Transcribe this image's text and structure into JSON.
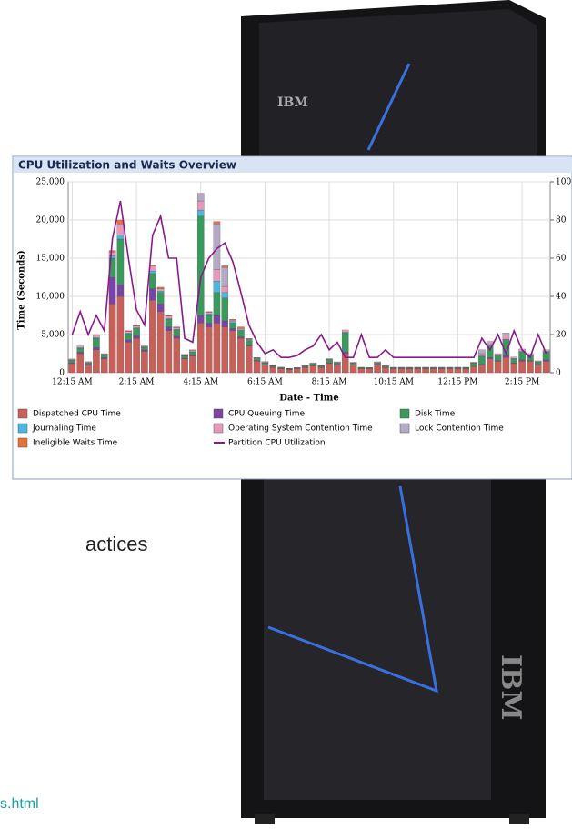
{
  "page_text": {
    "fragment_1": "actices",
    "fragment_2": "s.html",
    "logo": "IBM"
  },
  "chart_data": {
    "type": "bar",
    "stacked": true,
    "title": "CPU Utilization and Waits Overview",
    "x_label": "Date - Time",
    "y_label": "Time (Seconds)",
    "grid": true,
    "categories": [
      "12:15 AM",
      null,
      null,
      null,
      null,
      null,
      null,
      null,
      "2:15 AM",
      null,
      null,
      null,
      null,
      null,
      null,
      null,
      "4:15 AM",
      null,
      null,
      null,
      null,
      null,
      null,
      null,
      "6:15 AM",
      null,
      null,
      null,
      null,
      null,
      null,
      null,
      "8:15 AM",
      null,
      null,
      null,
      null,
      null,
      null,
      null,
      "10:15 AM",
      null,
      null,
      null,
      null,
      null,
      null,
      null,
      "12:15 PM",
      null,
      null,
      null,
      null,
      null,
      null,
      null,
      "2:15 PM",
      null,
      null,
      null
    ],
    "ylim": [
      0,
      25000
    ],
    "yticks": [
      0,
      {
        "value": 5000,
        "label": "5,000"
      },
      {
        "value": 10000,
        "label": "10,000"
      },
      {
        "value": 15000,
        "label": "15,000"
      },
      {
        "value": 20000,
        "label": "20,000"
      },
      {
        "value": 25000,
        "label": "25,000"
      }
    ],
    "y2lim": [
      0,
      100
    ],
    "y2ticks": [
      0,
      20,
      40,
      60,
      80,
      100
    ],
    "series": [
      {
        "name": "Dispatched CPU Time",
        "color": "#c8605a",
        "values": [
          1200,
          2500,
          1000,
          3000,
          1800,
          9000,
          10000,
          4000,
          4500,
          2800,
          9500,
          8000,
          5500,
          4500,
          1800,
          2200,
          6500,
          6000,
          6500,
          6000,
          5500,
          4500,
          3500,
          1500,
          1000,
          700,
          500,
          400,
          500,
          700,
          900,
          700,
          1200,
          1000,
          2500,
          1000,
          500,
          500,
          1000,
          700,
          500,
          500,
          500,
          500,
          500,
          500,
          500,
          500,
          500,
          500,
          800,
          1000,
          1800,
          1500,
          2000,
          1200,
          1500,
          1500,
          1000,
          1500
        ]
      },
      {
        "name": "CPU Queuing Time",
        "color": "#7a44a6",
        "values": [
          100,
          200,
          100,
          300,
          200,
          3500,
          1500,
          300,
          400,
          200,
          1500,
          1000,
          500,
          300,
          100,
          100,
          1000,
          500,
          1000,
          800,
          300,
          200,
          100,
          100,
          50,
          50,
          50,
          50,
          50,
          50,
          50,
          50,
          100,
          100,
          200,
          50,
          50,
          50,
          100,
          50,
          50,
          50,
          50,
          50,
          50,
          50,
          50,
          50,
          50,
          50,
          50,
          100,
          200,
          100,
          300,
          100,
          200,
          100,
          100,
          200
        ]
      },
      {
        "name": "Disk Time",
        "color": "#3a9a5c",
        "values": [
          300,
          500,
          200,
          1200,
          300,
          2500,
          6000,
          800,
          900,
          300,
          2000,
          1500,
          1000,
          800,
          300,
          400,
          13000,
          1000,
          3000,
          3000,
          700,
          800,
          600,
          200,
          200,
          100,
          100,
          80,
          80,
          100,
          200,
          100,
          400,
          200,
          2500,
          200,
          100,
          80,
          200,
          100,
          100,
          100,
          100,
          100,
          100,
          100,
          100,
          100,
          100,
          100,
          400,
          1000,
          1500,
          600,
          2000,
          500,
          1000,
          600,
          300,
          1000
        ]
      },
      {
        "name": "Journaling Time",
        "color": "#48b8e0",
        "values": [
          50,
          100,
          50,
          100,
          50,
          300,
          500,
          100,
          100,
          50,
          300,
          200,
          100,
          100,
          50,
          50,
          800,
          200,
          1500,
          700,
          200,
          100,
          100,
          50,
          50,
          30,
          30,
          20,
          20,
          30,
          50,
          30,
          50,
          30,
          100,
          30,
          20,
          20,
          30,
          20,
          20,
          20,
          20,
          20,
          20,
          20,
          20,
          20,
          20,
          20,
          50,
          100,
          200,
          100,
          100,
          50,
          100,
          100,
          50,
          100
        ]
      },
      {
        "name": "Operating System Contention Time",
        "color": "#e898b8",
        "values": [
          100,
          200,
          100,
          300,
          100,
          500,
          1500,
          200,
          200,
          100,
          700,
          300,
          300,
          200,
          100,
          200,
          1200,
          200,
          1500,
          800,
          200,
          200,
          100,
          100,
          100,
          50,
          50,
          30,
          30,
          50,
          100,
          50,
          100,
          100,
          300,
          100,
          50,
          30,
          100,
          50,
          50,
          50,
          50,
          50,
          50,
          50,
          50,
          50,
          50,
          50,
          100,
          300,
          400,
          200,
          500,
          200,
          300,
          200,
          100,
          200
        ]
      },
      {
        "name": "Lock Contention Time",
        "color": "#b4aac8",
        "values": [
          50,
          0,
          0,
          0,
          0,
          0,
          0,
          0,
          0,
          0,
          0,
          0,
          0,
          0,
          0,
          0,
          1000,
          0,
          6000,
          2500,
          0,
          0,
          0,
          0,
          0,
          0,
          0,
          0,
          0,
          0,
          0,
          0,
          0,
          0,
          0,
          0,
          0,
          0,
          0,
          0,
          0,
          0,
          0,
          0,
          0,
          0,
          0,
          0,
          0,
          0,
          0,
          500,
          0,
          0,
          300,
          0,
          0,
          0,
          0,
          0
        ]
      },
      {
        "name": "Ineligible Waits Time",
        "color": "#e8703a",
        "values": [
          0,
          0,
          0,
          100,
          50,
          200,
          500,
          100,
          100,
          50,
          100,
          200,
          100,
          100,
          50,
          50,
          0,
          100,
          300,
          200,
          100,
          200,
          100,
          50,
          50,
          30,
          0,
          0,
          0,
          0,
          0,
          0,
          0,
          0,
          0,
          0,
          0,
          0,
          0,
          0,
          0,
          0,
          0,
          0,
          0,
          0,
          0,
          0,
          0,
          0,
          0,
          0,
          0,
          0,
          0,
          0,
          0,
          0,
          0,
          0
        ]
      },
      {
        "name": "Partition CPU Utilization",
        "color": "#8a1a8a",
        "type": "line",
        "axis": "y2",
        "values": [
          20,
          32,
          20,
          30,
          22,
          70,
          90,
          60,
          33,
          25,
          72,
          82,
          60,
          60,
          18,
          16,
          50,
          60,
          65,
          68,
          58,
          42,
          25,
          16,
          10,
          12,
          8,
          8,
          9,
          12,
          14,
          20,
          12,
          16,
          8,
          8,
          20,
          8,
          8,
          12,
          8,
          8,
          8,
          8,
          8,
          8,
          8,
          8,
          8,
          8,
          8,
          18,
          12,
          20,
          10,
          22,
          12,
          8,
          20,
          10
        ]
      }
    ]
  }
}
